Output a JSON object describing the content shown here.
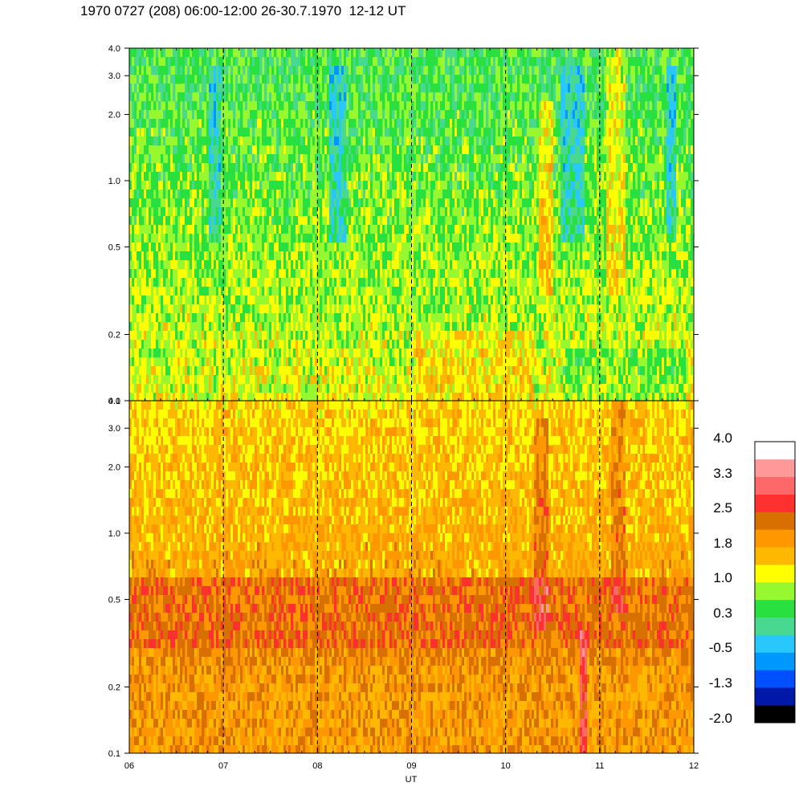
{
  "header": {
    "title": "1970 0727 (208) 06:00-12:00 26-30.7.1970  12-12 UT"
  },
  "colors": {
    "palette": [
      "#000000",
      "#0018a8",
      "#0050ff",
      "#0098ff",
      "#28c8ff",
      "#48d890",
      "#28e040",
      "#98f830",
      "#ffff00",
      "#ffb800",
      "#ff9800",
      "#d87000",
      "#ff3030",
      "#ff6868",
      "#ff9898",
      "#ffffff"
    ]
  },
  "chart_data": [
    {
      "type": "heatmap",
      "panel": "upper",
      "x_label": "",
      "x_range": [
        6,
        12
      ],
      "y_scale": "log",
      "y_range": [
        0.1,
        4.0
      ],
      "y_ticks": [
        "0.1",
        "0.2",
        "0.5",
        "1.0",
        "2.0",
        "3.0",
        "4.0"
      ],
      "y_tick_values": [
        0.1,
        0.2,
        0.5,
        1.0,
        2.0,
        3.0,
        4.0
      ],
      "dominant_levels": "green/yellow, low values (~0.3-1.0), blue patches near 2.0"
    },
    {
      "type": "heatmap",
      "panel": "lower",
      "x_label": "UT",
      "x_ticks": [
        "06",
        "07",
        "08",
        "09",
        "10",
        "11",
        "12"
      ],
      "x_tick_values": [
        6,
        7,
        8,
        9,
        10,
        11,
        12
      ],
      "x_range": [
        6,
        12
      ],
      "y_scale": "log",
      "y_range": [
        0.1,
        4.0
      ],
      "y_ticks": [
        "0.1",
        "0.2",
        "0.5",
        "1.0",
        "2.0",
        "3.0",
        "4.0"
      ],
      "y_tick_values": [
        0.1,
        0.2,
        0.5,
        1.0,
        2.0,
        3.0,
        4.0
      ],
      "dominant_levels": "orange/dark orange, high values (~1.8-2.5), red streaks near 10.4 and 10.8"
    }
  ],
  "colorbar": {
    "labels": [
      "4.0",
      "3.3",
      "2.5",
      "1.8",
      "1.0",
      "0.3",
      "-0.5",
      "-1.3",
      "-2.0"
    ],
    "range": [
      -2.0,
      4.0
    ]
  }
}
